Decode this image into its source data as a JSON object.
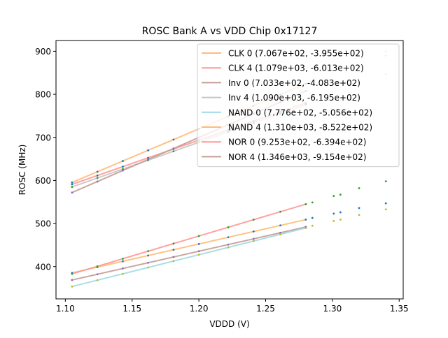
{
  "chart_data": {
    "type": "line",
    "title": "ROSC Bank A vs VDD Chip 0x17127",
    "xlabel": "VDDD (V)",
    "ylabel": "ROSC (MHz)",
    "xlim": [
      1.093,
      1.353
    ],
    "ylim": [
      325,
      925
    ],
    "xticks": [
      "1.10",
      "1.15",
      "1.20",
      "1.25",
      "1.30",
      "1.35"
    ],
    "xtick_values": [
      1.1,
      1.15,
      1.2,
      1.25,
      1.3,
      1.35
    ],
    "yticks": [
      "400",
      "500",
      "600",
      "700",
      "800",
      "900"
    ],
    "ytick_values": [
      400,
      500,
      600,
      700,
      800,
      900
    ],
    "grid": false,
    "legend_position": "top-right",
    "fit_x_range": [
      1.105,
      1.281
    ],
    "sample_x": [
      1.105,
      1.124,
      1.143,
      1.162,
      1.181,
      1.2,
      1.222,
      1.241,
      1.261,
      1.28
    ],
    "series": [
      {
        "name": "CLK 0",
        "label": "CLK 0 (7.067e+02, -3.955e+02)",
        "slope": 706.7,
        "intercept": -395.5,
        "color": "#ffbb78",
        "point_color": "#1f77b4"
      },
      {
        "name": "CLK 4",
        "label": "CLK 4 (1.079e+03, -6.013e+02)",
        "slope": 1079.0,
        "intercept": -601.3,
        "color": "#ff9896",
        "point_color": "#1f77b4"
      },
      {
        "name": "Inv 0",
        "label": "Inv 0 (7.033e+02, -4.083e+02)",
        "slope": 703.3,
        "intercept": -408.3,
        "color": "#c49c94",
        "point_color": "#9467bd"
      },
      {
        "name": "Inv 4",
        "label": "Inv 4 (1.090e+03, -6.195e+02)",
        "slope": 1090.0,
        "intercept": -619.5,
        "color": "#c7c7c7",
        "point_color": "#2ca02c"
      },
      {
        "name": "NAND 0",
        "label": "NAND 0 (7.776e+02, -5.056e+02)",
        "slope": 777.6,
        "intercept": -505.6,
        "color": "#9edae5",
        "point_color": "#bcbd22"
      },
      {
        "name": "NAND 4",
        "label": "NAND 4 (1.310e+03, -8.522e+02)",
        "slope": 1310.0,
        "intercept": -852.2,
        "color": "#ffbb78",
        "point_color": "#1f77b4"
      },
      {
        "name": "NOR 0",
        "label": "NOR 0 (9.253e+02, -6.394e+02)",
        "slope": 925.3,
        "intercept": -639.4,
        "color": "#ff9896",
        "point_color": "#2ca02c"
      },
      {
        "name": "NOR 4",
        "label": "NOR 4 (1.346e+03, -9.154e+02)",
        "slope": 1346.0,
        "intercept": -915.4,
        "color": "#c49c94",
        "point_color": "#9467bd"
      }
    ],
    "extra_points": [
      {
        "x": 1.285,
        "y": 549,
        "color": "#2ca02c"
      },
      {
        "x": 1.285,
        "y": 513,
        "color": "#1f77b4"
      },
      {
        "x": 1.285,
        "y": 495,
        "color": "#bcbd22"
      },
      {
        "x": 1.301,
        "y": 564,
        "color": "#2ca02c"
      },
      {
        "x": 1.301,
        "y": 523,
        "color": "#1f77b4"
      },
      {
        "x": 1.301,
        "y": 506,
        "color": "#bcbd22"
      },
      {
        "x": 1.306,
        "y": 567,
        "color": "#2ca02c"
      },
      {
        "x": 1.306,
        "y": 526,
        "color": "#1f77b4"
      },
      {
        "x": 1.306,
        "y": 509,
        "color": "#bcbd22"
      },
      {
        "x": 1.32,
        "y": 582,
        "color": "#2ca02c"
      },
      {
        "x": 1.32,
        "y": 536,
        "color": "#1f77b4"
      },
      {
        "x": 1.32,
        "y": 520,
        "color": "#bcbd22"
      },
      {
        "x": 1.34,
        "y": 598,
        "color": "#2ca02c"
      },
      {
        "x": 1.34,
        "y": 547,
        "color": "#1f77b4"
      },
      {
        "x": 1.34,
        "y": 533,
        "color": "#bcbd22"
      },
      {
        "x": 1.34,
        "y": 900,
        "color": "#aec7e8"
      },
      {
        "x": 1.34,
        "y": 890,
        "color": "#c5b0d5"
      },
      {
        "x": 1.34,
        "y": 847,
        "color": "#98df8a"
      }
    ]
  }
}
